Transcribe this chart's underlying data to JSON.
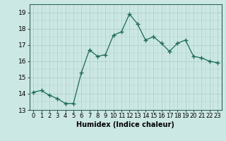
{
  "x": [
    0,
    1,
    2,
    3,
    4,
    5,
    6,
    7,
    8,
    9,
    10,
    11,
    12,
    13,
    14,
    15,
    16,
    17,
    18,
    19,
    20,
    21,
    22,
    23
  ],
  "y": [
    14.1,
    14.2,
    13.9,
    13.7,
    13.4,
    13.4,
    15.3,
    16.7,
    16.3,
    16.4,
    17.6,
    17.8,
    18.9,
    18.3,
    17.3,
    17.5,
    17.1,
    16.6,
    17.1,
    17.3,
    16.3,
    16.2,
    16.0,
    15.9
  ],
  "xlabel": "Humidex (Indice chaleur)",
  "ylim": [
    13,
    19.5
  ],
  "xlim": [
    -0.5,
    23.5
  ],
  "yticks": [
    13,
    14,
    15,
    16,
    17,
    18,
    19
  ],
  "xticks": [
    0,
    1,
    2,
    3,
    4,
    5,
    6,
    7,
    8,
    9,
    10,
    11,
    12,
    13,
    14,
    15,
    16,
    17,
    18,
    19,
    20,
    21,
    22,
    23
  ],
  "line_color": "#1a6b5a",
  "marker": "+",
  "marker_size": 4,
  "marker_linewidth": 1.0,
  "line_width": 0.9,
  "bg_color": "#cce8e4",
  "grid_color": "#b0ceca",
  "xlabel_fontsize": 7,
  "xlabel_fontweight": "bold",
  "tick_fontsize": 6,
  "ytick_fontsize": 6.5
}
